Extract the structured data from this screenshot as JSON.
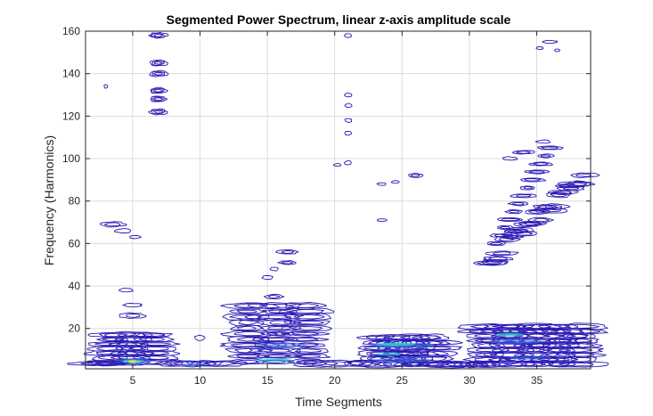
{
  "chart_data": {
    "type": "contour",
    "title": "Segmented Power Spectrum, linear z-axis amplitude scale",
    "xlabel": "Time Segments",
    "ylabel": "Frequency (Harmonics)",
    "xlim": [
      1.5,
      39
    ],
    "ylim": [
      1,
      160
    ],
    "xticks": [
      5,
      10,
      15,
      20,
      25,
      30,
      35
    ],
    "yticks": [
      20,
      40,
      60,
      80,
      100,
      120,
      140,
      160
    ],
    "grid": true,
    "colors": {
      "low": "#2b1bb4",
      "mid": "#3a6fe0",
      "high": "#2fd3c8",
      "peak": "#e8d84a",
      "grid": "#dcdcdc",
      "axis": "#262626"
    },
    "features": [
      {
        "label": "seg5-low-burst",
        "x": 5,
        "y": 5,
        "intensity": "peak"
      },
      {
        "label": "seg5-stack",
        "x": 5,
        "y": 15,
        "intensity": "low"
      },
      {
        "label": "seg3-isolated",
        "x": 3.5,
        "y": 68,
        "intensity": "low"
      },
      {
        "label": "seg7-high-islands",
        "x": 6.8,
        "y": 140,
        "intensity": "low"
      },
      {
        "label": "seg10-small",
        "x": 10,
        "y": 4,
        "intensity": "mid"
      },
      {
        "label": "seg15-stack",
        "x": 15.5,
        "y": 20,
        "intensity": "mid"
      },
      {
        "label": "seg16-upper",
        "x": 16,
        "y": 55,
        "intensity": "low"
      },
      {
        "label": "seg21-vertical-column",
        "x": 21,
        "y": 120,
        "intensity": "low"
      },
      {
        "label": "seg25-band",
        "x": 25,
        "y": 12,
        "intensity": "high"
      },
      {
        "label": "seg26-isolated",
        "x": 26,
        "y": 92,
        "intensity": "low"
      },
      {
        "label": "seg33-band",
        "x": 34,
        "y": 14,
        "intensity": "high"
      },
      {
        "label": "seg30-38-diagonal-ridge",
        "x": 34,
        "y": 80,
        "intensity": "low"
      },
      {
        "label": "seg36-top",
        "x": 36,
        "y": 155,
        "intensity": "low"
      }
    ]
  }
}
